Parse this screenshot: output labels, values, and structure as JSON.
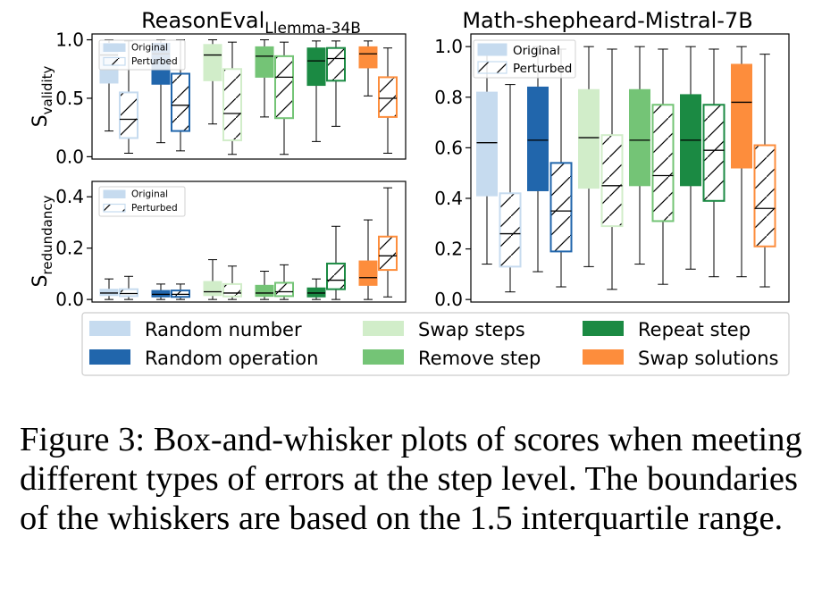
{
  "caption": "Figure 3: Box-and-whisker plots of scores when meeting different types of errors at the step level. The boundaries of the whiskers are based on the 1.5 interquartile range.",
  "legend": {
    "entries": [
      {
        "key": "rn",
        "label": "Random number",
        "color": "#c6dbef"
      },
      {
        "key": "ro",
        "label": "Random operation",
        "color": "#2166ac"
      },
      {
        "key": "ss",
        "label": "Swap steps",
        "color": "#d1edc9"
      },
      {
        "key": "rs",
        "label": "Remove step",
        "color": "#74c476"
      },
      {
        "key": "rp",
        "label": "Repeat step",
        "color": "#1b8a43"
      },
      {
        "key": "so",
        "label": "Swap solutions",
        "color": "#fd8d3c"
      }
    ]
  },
  "chart_data": [
    {
      "id": "reasoneval_validity",
      "type": "box",
      "title_main": "ReasonEval",
      "title_sub": "Llemma-34B",
      "ylabel_main": "S",
      "ylabel_sub": "validity",
      "ylim": [
        -0.02,
        1.05
      ],
      "yticks": [
        {
          "v": 0.0,
          "label": "0.0"
        },
        {
          "v": 0.5,
          "label": "0.5"
        },
        {
          "v": 1.0,
          "label": "1.0"
        }
      ],
      "inner_legend": [
        "Original",
        "Perturbed"
      ],
      "groups": [
        {
          "key": "rn",
          "original": {
            "wlo": 0.22,
            "q1": 0.63,
            "med": 0.87,
            "q3": 0.97,
            "whi": 1.0
          },
          "perturbed": {
            "wlo": 0.03,
            "q1": 0.16,
            "med": 0.32,
            "q3": 0.55,
            "whi": 0.99
          }
        },
        {
          "key": "ro",
          "original": {
            "wlo": 0.12,
            "q1": 0.62,
            "med": 0.88,
            "q3": 0.97,
            "whi": 1.0
          },
          "perturbed": {
            "wlo": 0.05,
            "q1": 0.22,
            "med": 0.44,
            "q3": 0.71,
            "whi": 1.0
          }
        },
        {
          "key": "ss",
          "original": {
            "wlo": 0.28,
            "q1": 0.65,
            "med": 0.87,
            "q3": 0.96,
            "whi": 1.0
          },
          "perturbed": {
            "wlo": 0.02,
            "q1": 0.14,
            "med": 0.37,
            "q3": 0.75,
            "whi": 0.98
          }
        },
        {
          "key": "rs",
          "original": {
            "wlo": 0.34,
            "q1": 0.68,
            "med": 0.86,
            "q3": 0.94,
            "whi": 1.0
          },
          "perturbed": {
            "wlo": 0.02,
            "q1": 0.33,
            "med": 0.68,
            "q3": 0.86,
            "whi": 0.98
          }
        },
        {
          "key": "rp",
          "original": {
            "wlo": 0.13,
            "q1": 0.61,
            "med": 0.82,
            "q3": 0.93,
            "whi": 0.99
          },
          "perturbed": {
            "wlo": 0.26,
            "q1": 0.65,
            "med": 0.84,
            "q3": 0.93,
            "whi": 0.99
          }
        },
        {
          "key": "so",
          "original": {
            "wlo": 0.52,
            "q1": 0.76,
            "med": 0.88,
            "q3": 0.94,
            "whi": 0.99
          },
          "perturbed": {
            "wlo": 0.03,
            "q1": 0.34,
            "med": 0.5,
            "q3": 0.68,
            "whi": 0.93
          }
        }
      ]
    },
    {
      "id": "reasoneval_redundancy",
      "type": "box",
      "title_main": "",
      "title_sub": "",
      "ylabel_main": "S",
      "ylabel_sub": "redundancy",
      "ylim": [
        -0.01,
        0.46
      ],
      "yticks": [
        {
          "v": 0.0,
          "label": "0.0"
        },
        {
          "v": 0.2,
          "label": "0.2"
        },
        {
          "v": 0.4,
          "label": "0.4"
        }
      ],
      "inner_legend": [
        "Original",
        "Perturbed"
      ],
      "groups": [
        {
          "key": "rn",
          "original": {
            "wlo": 0.0,
            "q1": 0.015,
            "med": 0.025,
            "q3": 0.04,
            "whi": 0.08
          },
          "perturbed": {
            "wlo": 0.0,
            "q1": 0.013,
            "med": 0.023,
            "q3": 0.04,
            "whi": 0.09
          }
        },
        {
          "key": "ro",
          "original": {
            "wlo": 0.0,
            "q1": 0.01,
            "med": 0.02,
            "q3": 0.035,
            "whi": 0.06
          },
          "perturbed": {
            "wlo": 0.0,
            "q1": 0.01,
            "med": 0.02,
            "q3": 0.035,
            "whi": 0.06
          }
        },
        {
          "key": "ss",
          "original": {
            "wlo": 0.0,
            "q1": 0.015,
            "med": 0.03,
            "q3": 0.07,
            "whi": 0.155
          },
          "perturbed": {
            "wlo": 0.0,
            "q1": 0.012,
            "med": 0.025,
            "q3": 0.06,
            "whi": 0.13
          }
        },
        {
          "key": "rs",
          "original": {
            "wlo": 0.0,
            "q1": 0.012,
            "med": 0.025,
            "q3": 0.055,
            "whi": 0.11
          },
          "perturbed": {
            "wlo": 0.0,
            "q1": 0.013,
            "med": 0.03,
            "q3": 0.065,
            "whi": 0.135
          }
        },
        {
          "key": "rp",
          "original": {
            "wlo": 0.0,
            "q1": 0.01,
            "med": 0.025,
            "q3": 0.045,
            "whi": 0.08
          },
          "perturbed": {
            "wlo": 0.0,
            "q1": 0.04,
            "med": 0.075,
            "q3": 0.14,
            "whi": 0.285
          }
        },
        {
          "key": "so",
          "original": {
            "wlo": 0.0,
            "q1": 0.055,
            "med": 0.085,
            "q3": 0.15,
            "whi": 0.31
          },
          "perturbed": {
            "wlo": 0.01,
            "q1": 0.115,
            "med": 0.17,
            "q3": 0.245,
            "whi": 0.435
          }
        }
      ]
    },
    {
      "id": "math_shepherd",
      "type": "box",
      "title_main": "Math-shepheard-Mistral-7B",
      "title_sub": "",
      "ylabel_main": "",
      "ylabel_sub": "",
      "ylim": [
        -0.01,
        1.05
      ],
      "yticks": [
        {
          "v": 0.0,
          "label": "0.0"
        },
        {
          "v": 0.2,
          "label": "0.2"
        },
        {
          "v": 0.4,
          "label": "0.4"
        },
        {
          "v": 0.6,
          "label": "0.6"
        },
        {
          "v": 0.8,
          "label": "0.8"
        },
        {
          "v": 1.0,
          "label": "1.0"
        }
      ],
      "inner_legend": [
        "Original",
        "Perturbed"
      ],
      "groups": [
        {
          "key": "rn",
          "original": {
            "wlo": 0.14,
            "q1": 0.41,
            "med": 0.62,
            "q3": 0.82,
            "whi": 1.0
          },
          "perturbed": {
            "wlo": 0.03,
            "q1": 0.13,
            "med": 0.26,
            "q3": 0.42,
            "whi": 0.85
          }
        },
        {
          "key": "ro",
          "original": {
            "wlo": 0.11,
            "q1": 0.43,
            "med": 0.63,
            "q3": 0.84,
            "whi": 1.0
          },
          "perturbed": {
            "wlo": 0.05,
            "q1": 0.19,
            "med": 0.35,
            "q3": 0.54,
            "whi": 0.99
          }
        },
        {
          "key": "ss",
          "original": {
            "wlo": 0.13,
            "q1": 0.44,
            "med": 0.64,
            "q3": 0.83,
            "whi": 1.0
          },
          "perturbed": {
            "wlo": 0.04,
            "q1": 0.29,
            "med": 0.45,
            "q3": 0.65,
            "whi": 0.99
          }
        },
        {
          "key": "rs",
          "original": {
            "wlo": 0.14,
            "q1": 0.45,
            "med": 0.63,
            "q3": 0.83,
            "whi": 1.0
          },
          "perturbed": {
            "wlo": 0.06,
            "q1": 0.31,
            "med": 0.49,
            "q3": 0.77,
            "whi": 0.99
          }
        },
        {
          "key": "rp",
          "original": {
            "wlo": 0.12,
            "q1": 0.45,
            "med": 0.63,
            "q3": 0.81,
            "whi": 1.0
          },
          "perturbed": {
            "wlo": 0.09,
            "q1": 0.39,
            "med": 0.59,
            "q3": 0.77,
            "whi": 0.99
          }
        },
        {
          "key": "so",
          "original": {
            "wlo": 0.09,
            "q1": 0.52,
            "med": 0.78,
            "q3": 0.93,
            "whi": 1.0
          },
          "perturbed": {
            "wlo": 0.05,
            "q1": 0.21,
            "med": 0.36,
            "q3": 0.61,
            "whi": 0.97
          }
        }
      ]
    }
  ]
}
